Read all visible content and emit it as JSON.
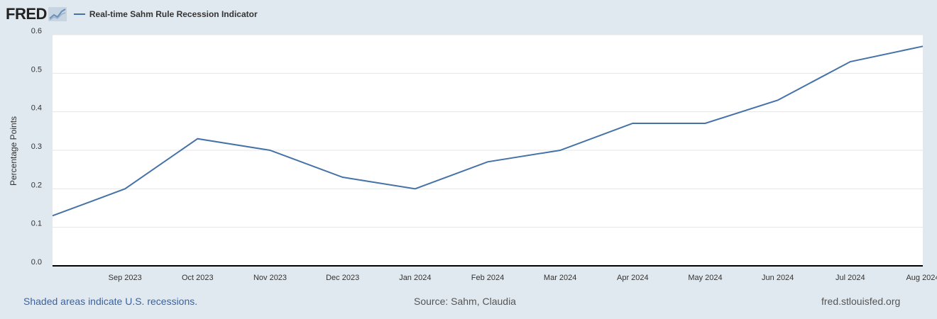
{
  "brand": {
    "logo_text": "FRED"
  },
  "legend": {
    "series_label": "Real-time Sahm Rule Recession Indicator"
  },
  "colors": {
    "series": "#4572a7",
    "background": "#e1e9f0",
    "plot_background": "#ffffff",
    "link": "#3a63a1"
  },
  "chart_data": {
    "type": "line",
    "title": "",
    "xlabel": "",
    "ylabel": "Percentage Points",
    "ylim": [
      0.0,
      0.6
    ],
    "yticks": [
      "0.0",
      "0.1",
      "0.2",
      "0.3",
      "0.4",
      "0.5",
      "0.6"
    ],
    "x": [
      "2023-08",
      "2023-09",
      "2023-10",
      "2023-11",
      "2023-12",
      "2024-01",
      "2024-02",
      "2024-03",
      "2024-04",
      "2024-05",
      "2024-06",
      "2024-07",
      "2024-08"
    ],
    "xtick_labels": [
      "Sep 2023",
      "Oct 2023",
      "Nov 2023",
      "Dec 2023",
      "Jan 2024",
      "Feb 2024",
      "Mar 2024",
      "Apr 2024",
      "May 2024",
      "Jun 2024",
      "Jul 2024",
      "Aug 2024"
    ],
    "series": [
      {
        "name": "Real-time Sahm Rule Recession Indicator",
        "values": [
          0.13,
          0.2,
          0.33,
          0.3,
          0.23,
          0.2,
          0.27,
          0.3,
          0.37,
          0.37,
          0.43,
          0.53,
          0.57
        ]
      }
    ],
    "grid": true,
    "legend_position": "top-left"
  },
  "footer": {
    "recession_note": "Shaded areas indicate U.S. recessions.",
    "source": "Source: Sahm, Claudia",
    "site": "fred.stlouisfed.org"
  }
}
